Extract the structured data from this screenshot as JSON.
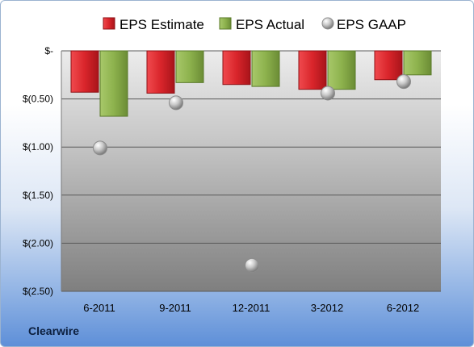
{
  "footer": {
    "company": "Clearwire"
  },
  "colors": {
    "estimate": "#d9252b",
    "actual": "#8db24d",
    "gaap": "#b5b5b5"
  },
  "chart_data": {
    "type": "bar",
    "categories": [
      "6-2011",
      "9-2011",
      "12-2011",
      "3-2012",
      "6-2012"
    ],
    "series": [
      {
        "name": "EPS Estimate",
        "type": "bar",
        "values": [
          -0.43,
          -0.44,
          -0.35,
          -0.4,
          -0.3
        ]
      },
      {
        "name": "EPS Actual",
        "type": "bar",
        "values": [
          -0.68,
          -0.33,
          -0.37,
          -0.4,
          -0.25
        ]
      },
      {
        "name": "EPS GAAP",
        "type": "scatter",
        "values": [
          -1.01,
          -0.54,
          -2.23,
          -0.44,
          -0.32
        ]
      }
    ],
    "ylim": [
      -2.5,
      0
    ],
    "yticks": [
      {
        "value": 0,
        "label": "$-"
      },
      {
        "value": -0.5,
        "label": "$(0.50)"
      },
      {
        "value": -1.0,
        "label": "$(1.00)"
      },
      {
        "value": -1.5,
        "label": "$(1.50)"
      },
      {
        "value": -2.0,
        "label": "$(2.00)"
      },
      {
        "value": -2.5,
        "label": "$(2.50)"
      }
    ],
    "legend_position": "top",
    "grid": true
  }
}
